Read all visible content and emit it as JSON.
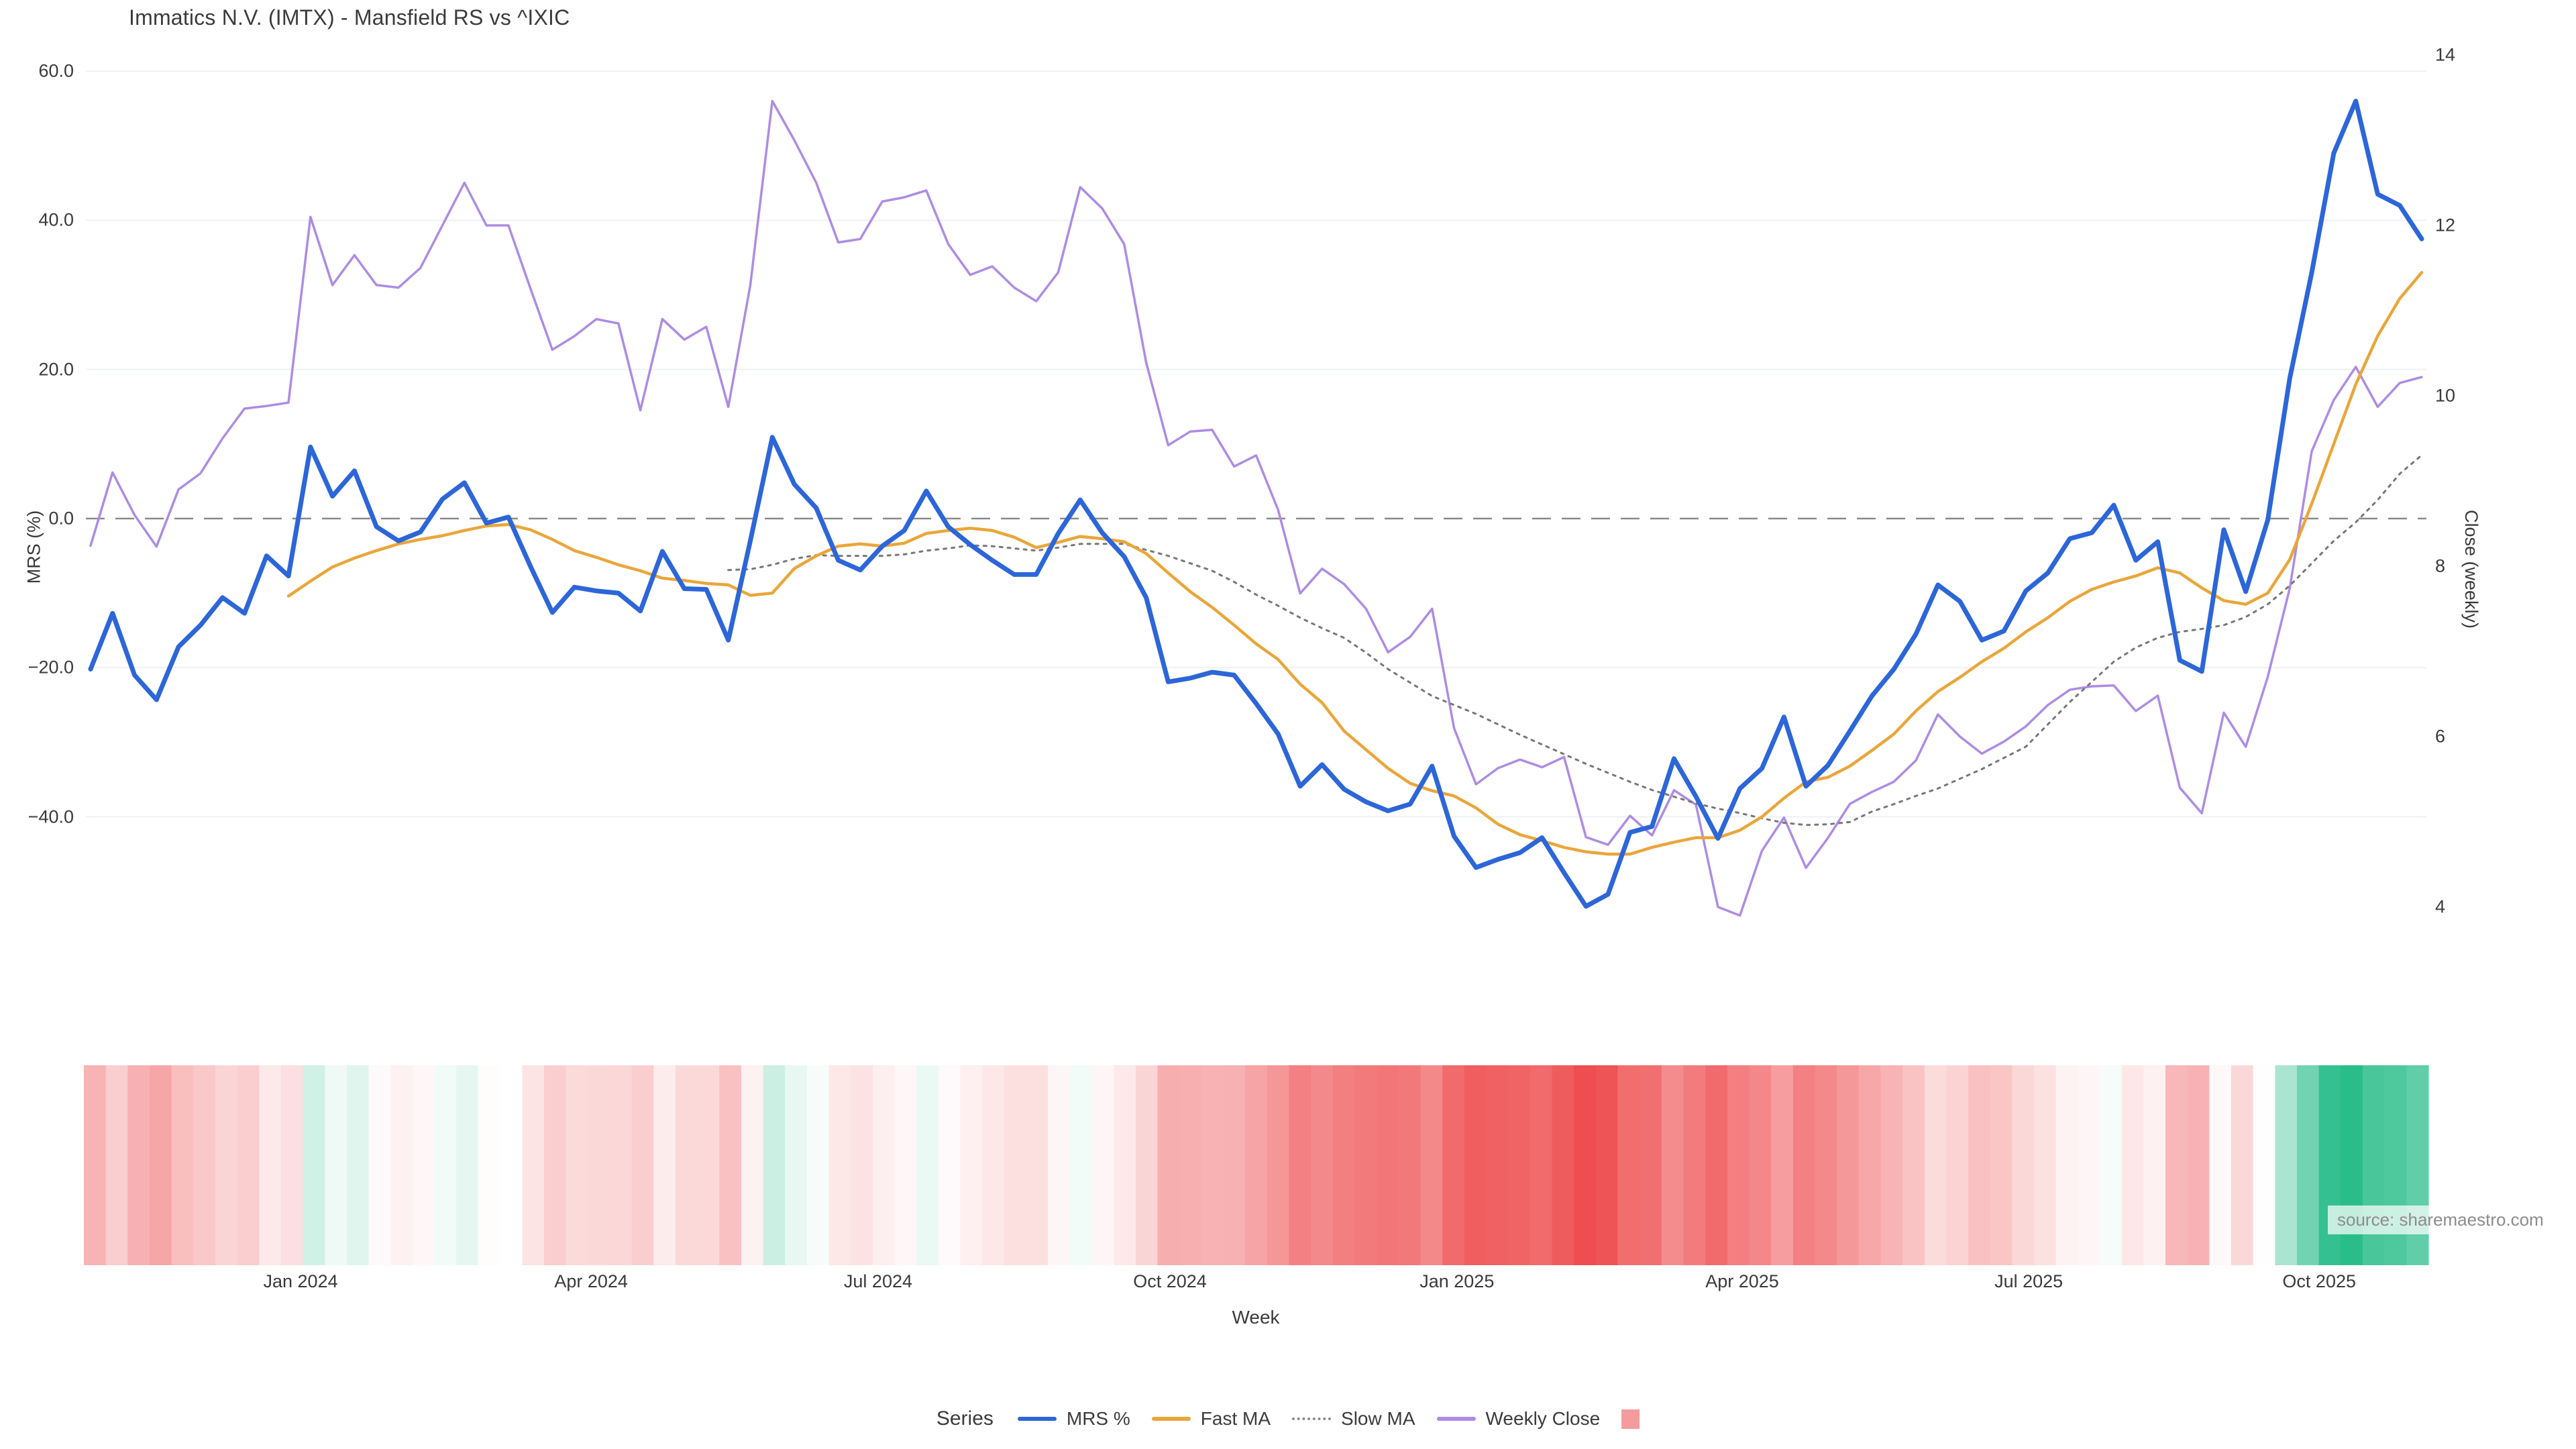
{
  "title": "Immatics N.V. (IMTX) - Mansfield RS vs ^IXIC",
  "source_note": "source: sharemaestro.com",
  "axes": {
    "left": {
      "label": "MRS (%)",
      "tick_labels": [
        "60.0",
        "40.0",
        "20.0",
        "0.0",
        "−20.0",
        "−40.0"
      ],
      "tick_values": [
        60,
        40,
        20,
        0,
        -20,
        -40
      ]
    },
    "right": {
      "label": "Close (weekly)",
      "tick_labels": [
        "14",
        "12",
        "10",
        "8",
        "6",
        "4"
      ],
      "tick_values": [
        14,
        12,
        10,
        8,
        6,
        4
      ]
    },
    "x": {
      "label": "Week",
      "tick_labels": [
        "Jan 2024",
        "Apr 2024",
        "Jul 2024",
        "Oct 2024",
        "Jan 2025",
        "Apr 2025",
        "Jul 2025",
        "Oct 2025"
      ],
      "tick_week_index": [
        9.55,
        22.76,
        35.81,
        49.08,
        62.13,
        75.1,
        88.13,
        101.34
      ]
    }
  },
  "legend": {
    "title": "Series",
    "entries": [
      {
        "label": "MRS %",
        "swatch": "line",
        "color": "#2c66d8"
      },
      {
        "label": "Fast MA",
        "swatch": "line",
        "color": "#e9a63a"
      },
      {
        "label": "Slow MA",
        "swatch": "dotted",
        "color": "#8b8b8b"
      },
      {
        "label": "Weekly Close",
        "swatch": "line",
        "color": "#ad8ce4"
      },
      {
        "label": "",
        "swatch": "square",
        "color": "#f49c9d"
      }
    ]
  },
  "colors": {
    "mrs": "#2c66d8",
    "fast_ma": "#e9a63a",
    "slow_ma": "#777777",
    "weekly_close": "#ad8ce4",
    "zero_line": "#8a8a8a",
    "grid": "#eef1f5",
    "heat_red": "#ee4e50",
    "heat_green": "#29bd8a",
    "text": "#3a3a3a",
    "source_text": "#8c8c8c"
  },
  "chart_data": {
    "type": "line",
    "title": "Immatics N.V. (IMTX) - Mansfield RS vs ^IXIC",
    "xlabel": "Week",
    "x_unit": "weekly",
    "x_start_week": "2023-10-23",
    "n_weeks": 107,
    "ylabel_left": "MRS (%)",
    "ylabel_right": "Close (weekly)",
    "ylim_left": [
      -63,
      62
    ],
    "ylim_right": [
      3.0,
      14.2
    ],
    "grid": "horizontal-light",
    "zero_reference_line": true,
    "legend_position": "bottom-center",
    "series": [
      {
        "name": "MRS %",
        "axis": "left",
        "style": "solid",
        "width": 7,
        "color": "#2c66d8",
        "values": [
          -20.2,
          -12.7,
          -21.0,
          -24.3,
          -17.2,
          -14.3,
          -10.6,
          -12.7,
          -5.0,
          -7.7,
          9.6,
          3.0,
          6.4,
          -1.1,
          -3.0,
          -1.8,
          2.6,
          4.8,
          -0.6,
          0.2,
          -6.4,
          -12.6,
          -9.2,
          -9.7,
          -10.0,
          -12.4,
          -4.4,
          -9.4,
          -9.5,
          -16.3,
          -3.0,
          10.9,
          4.6,
          1.4,
          -5.6,
          -6.9,
          -3.7,
          -1.6,
          3.7,
          -1.1,
          -3.5,
          -5.6,
          -7.5,
          -7.5,
          -2.0,
          2.5,
          -1.9,
          -5.1,
          -10.6,
          -21.9,
          -21.4,
          -20.6,
          -21.0,
          -24.8,
          -28.9,
          -35.9,
          -33.0,
          -36.3,
          -38.0,
          -39.2,
          -38.3,
          -33.2,
          -42.6,
          -46.8,
          -45.7,
          -44.8,
          -42.8,
          -47.5,
          -52.0,
          -50.4,
          -42.1,
          -41.3,
          -32.2,
          -37.3,
          -42.9,
          -36.2,
          -33.5,
          -26.6,
          -35.9,
          -33.1,
          -28.5,
          -23.8,
          -20.2,
          -15.5,
          -8.9,
          -11.1,
          -16.3,
          -15.1,
          -9.7,
          -7.3,
          -2.7,
          -1.9,
          1.8,
          -5.6,
          -3.1,
          -19.0,
          -20.5,
          -1.5,
          -9.8,
          -0.2,
          18.8,
          33.0,
          49.0,
          56.0,
          43.5,
          42.0,
          37.5
        ]
      },
      {
        "name": "Fast MA",
        "axis": "left",
        "style": "solid",
        "width": 4.5,
        "color": "#e9a63a",
        "values": [
          null,
          null,
          null,
          null,
          null,
          null,
          null,
          null,
          null,
          -10.4,
          -8.4,
          -6.5,
          -5.3,
          -4.3,
          -3.4,
          -2.8,
          -2.3,
          -1.6,
          -1.0,
          -0.8,
          -1.5,
          -2.8,
          -4.3,
          -5.2,
          -6.2,
          -7.0,
          -8.0,
          -8.3,
          -8.7,
          -8.9,
          -10.3,
          -10.0,
          -6.7,
          -5.0,
          -3.7,
          -3.4,
          -3.7,
          -3.3,
          -2.0,
          -1.6,
          -1.3,
          -1.6,
          -2.5,
          -3.9,
          -3.2,
          -2.4,
          -2.7,
          -3.1,
          -4.7,
          -7.3,
          -9.8,
          -11.9,
          -14.3,
          -16.8,
          -18.9,
          -22.2,
          -24.7,
          -28.5,
          -31.0,
          -33.5,
          -35.5,
          -36.5,
          -37.2,
          -38.8,
          -41.0,
          -42.4,
          -43.2,
          -44.1,
          -44.7,
          -45.0,
          -45.0,
          -44.1,
          -43.4,
          -42.8,
          -42.8,
          -41.8,
          -40.0,
          -37.5,
          -35.3,
          -34.7,
          -33.2,
          -31.1,
          -28.9,
          -25.8,
          -23.2,
          -21.3,
          -19.2,
          -17.4,
          -15.2,
          -13.3,
          -11.1,
          -9.5,
          -8.5,
          -7.7,
          -6.6,
          -7.3,
          -9.3,
          -11.0,
          -11.5,
          -10.0,
          -5.5,
          2.0,
          10.0,
          18.0,
          24.5,
          29.5,
          33.0
        ]
      },
      {
        "name": "Slow MA",
        "axis": "left",
        "style": "dotted",
        "width": 3,
        "color": "#777777",
        "values": [
          null,
          null,
          null,
          null,
          null,
          null,
          null,
          null,
          null,
          null,
          null,
          null,
          null,
          null,
          null,
          null,
          null,
          null,
          null,
          null,
          null,
          null,
          null,
          null,
          null,
          null,
          null,
          null,
          null,
          -6.9,
          -6.8,
          -6.2,
          -5.4,
          -4.9,
          -5.0,
          -5.0,
          -5.0,
          -4.8,
          -4.3,
          -4.0,
          -3.6,
          -3.7,
          -4.0,
          -4.3,
          -3.9,
          -3.4,
          -3.4,
          -3.4,
          -4.2,
          -5.0,
          -6.0,
          -7.0,
          -8.5,
          -10.2,
          -11.7,
          -13.3,
          -14.7,
          -16.0,
          -18.0,
          -20.2,
          -22.0,
          -23.8,
          -25.0,
          -26.2,
          -27.6,
          -29.0,
          -30.3,
          -31.6,
          -32.9,
          -34.1,
          -35.3,
          -36.4,
          -37.3,
          -38.2,
          -38.9,
          -39.5,
          -40.2,
          -40.8,
          -41.1,
          -41.0,
          -40.7,
          -39.3,
          -38.3,
          -37.2,
          -36.2,
          -34.9,
          -33.6,
          -32.1,
          -30.6,
          -27.6,
          -24.6,
          -21.9,
          -19.2,
          -17.3,
          -16.0,
          -15.2,
          -14.8,
          -14.3,
          -13.2,
          -11.5,
          -9.0,
          -6.0,
          -3.0,
          -0.5,
          2.5,
          6.0,
          8.5
        ]
      },
      {
        "name": "Weekly Close",
        "axis": "right",
        "style": "solid",
        "width": 3.5,
        "color": "#ad8ce4",
        "values": [
          8.24,
          9.1,
          8.6,
          8.23,
          8.9,
          9.09,
          9.5,
          9.85,
          9.88,
          9.92,
          12.1,
          11.3,
          11.65,
          11.3,
          11.27,
          11.5,
          12.0,
          12.5,
          12.0,
          12.0,
          11.26,
          10.54,
          10.7,
          10.9,
          10.85,
          9.83,
          10.9,
          10.66,
          10.81,
          9.87,
          11.3,
          13.46,
          13.0,
          12.5,
          11.8,
          11.84,
          12.28,
          12.33,
          12.41,
          11.78,
          11.42,
          11.52,
          11.27,
          11.11,
          11.45,
          12.45,
          12.2,
          11.78,
          10.39,
          9.42,
          9.58,
          9.6,
          9.17,
          9.3,
          8.66,
          7.68,
          7.97,
          7.79,
          7.5,
          6.99,
          7.17,
          7.5,
          6.1,
          5.44,
          5.63,
          5.73,
          5.64,
          5.76,
          4.82,
          4.73,
          5.07,
          4.84,
          5.37,
          5.2,
          4.0,
          3.9,
          4.66,
          5.05,
          4.46,
          4.81,
          5.21,
          5.35,
          5.47,
          5.72,
          6.26,
          6.0,
          5.8,
          5.94,
          6.12,
          6.37,
          6.55,
          6.59,
          6.6,
          6.3,
          6.48,
          5.4,
          5.1,
          6.28,
          5.88,
          6.7,
          7.74,
          9.35,
          9.95,
          10.34,
          9.87,
          10.15,
          10.22
        ]
      }
    ],
    "heatmap": {
      "description": "weekly strip below chart, diverging color of MRS % value (red negative, green positive)",
      "source_series": "MRS %",
      "color_negative": "#ee4e50",
      "color_positive": "#29bd8a",
      "domain_abs": 52
    }
  }
}
